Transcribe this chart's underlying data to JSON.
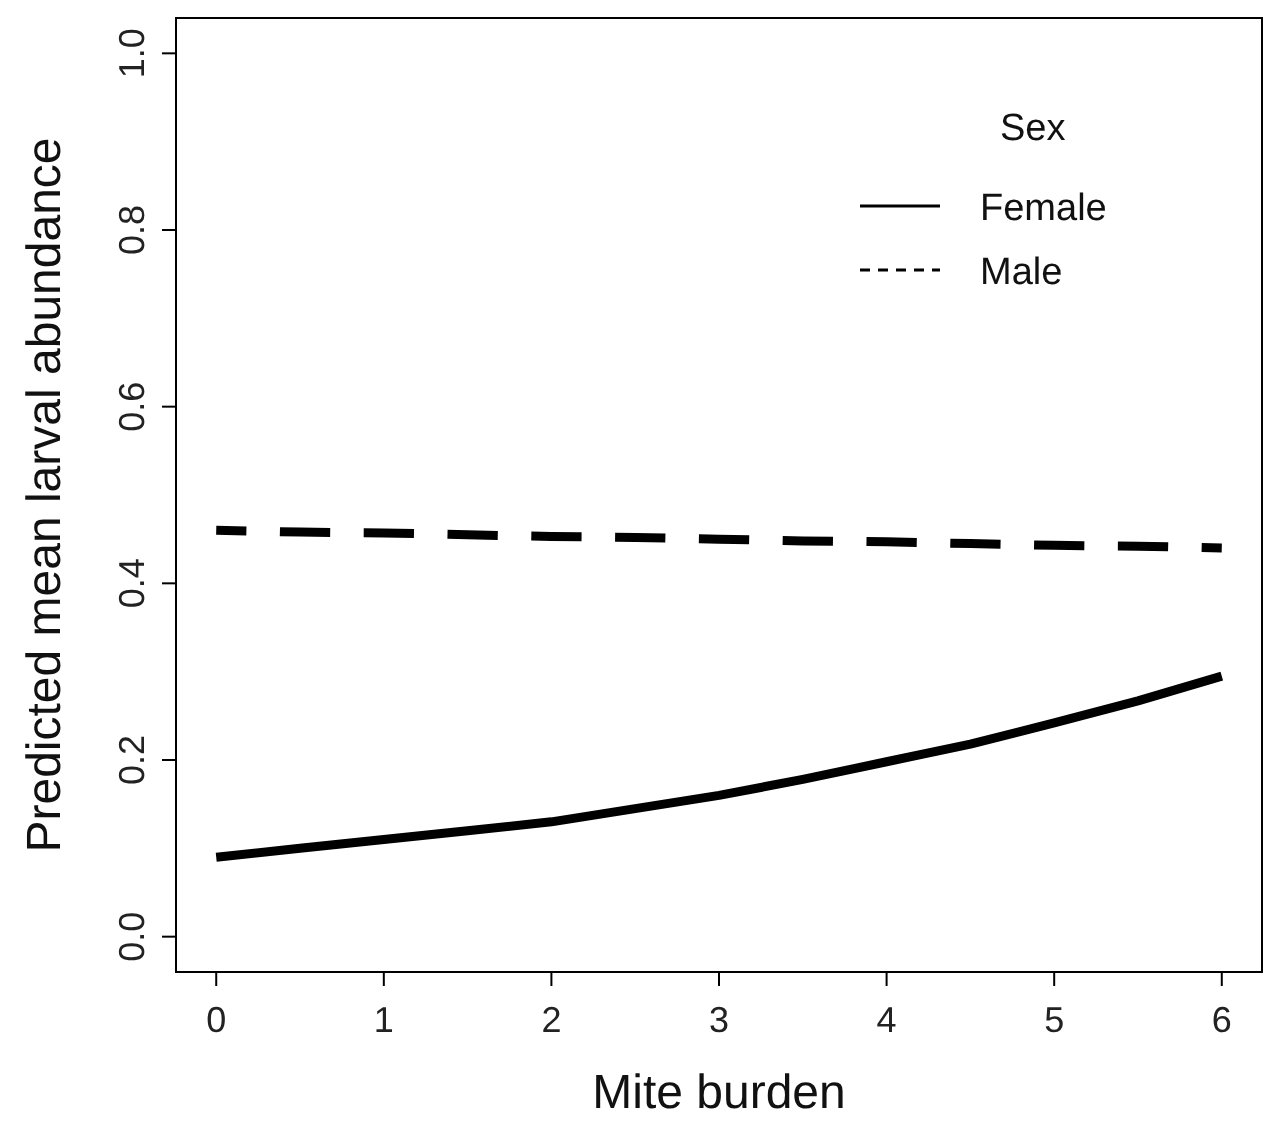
{
  "chart_data": {
    "type": "line",
    "xlabel": "Mite burden",
    "ylabel": "Predicted mean larval abundance",
    "legend_title": "Sex",
    "legend": "top right",
    "grid": false,
    "marker": "none",
    "xlim": [
      -0.24,
      6.24
    ],
    "xticks": [
      0,
      1,
      2,
      3,
      4,
      5,
      6
    ],
    "ylim": [
      -0.04,
      1.04
    ],
    "yticks": [
      {
        "value": 0,
        "label": "0.0"
      },
      0.2,
      0.4,
      0.6,
      0.8,
      {
        "value": 1,
        "label": "1.0"
      }
    ],
    "x": [
      0,
      0.5,
      1,
      1.5,
      2,
      2.5,
      3,
      3.5,
      4,
      4.5,
      5,
      5.5,
      6
    ],
    "series": [
      {
        "name": "Female",
        "color": "#000000",
        "line_style": "solid",
        "values": [
          0.09,
          0.1,
          0.11,
          0.12,
          0.13,
          0.145,
          0.16,
          0.178,
          0.198,
          0.218,
          0.242,
          0.267,
          0.295
        ]
      },
      {
        "name": "Male",
        "color": "#000000",
        "line_style": "dashed",
        "values": [
          0.46,
          0.458,
          0.457,
          0.455,
          0.453,
          0.452,
          0.45,
          0.448,
          0.447,
          0.445,
          0.443,
          0.442,
          0.44
        ]
      }
    ]
  }
}
